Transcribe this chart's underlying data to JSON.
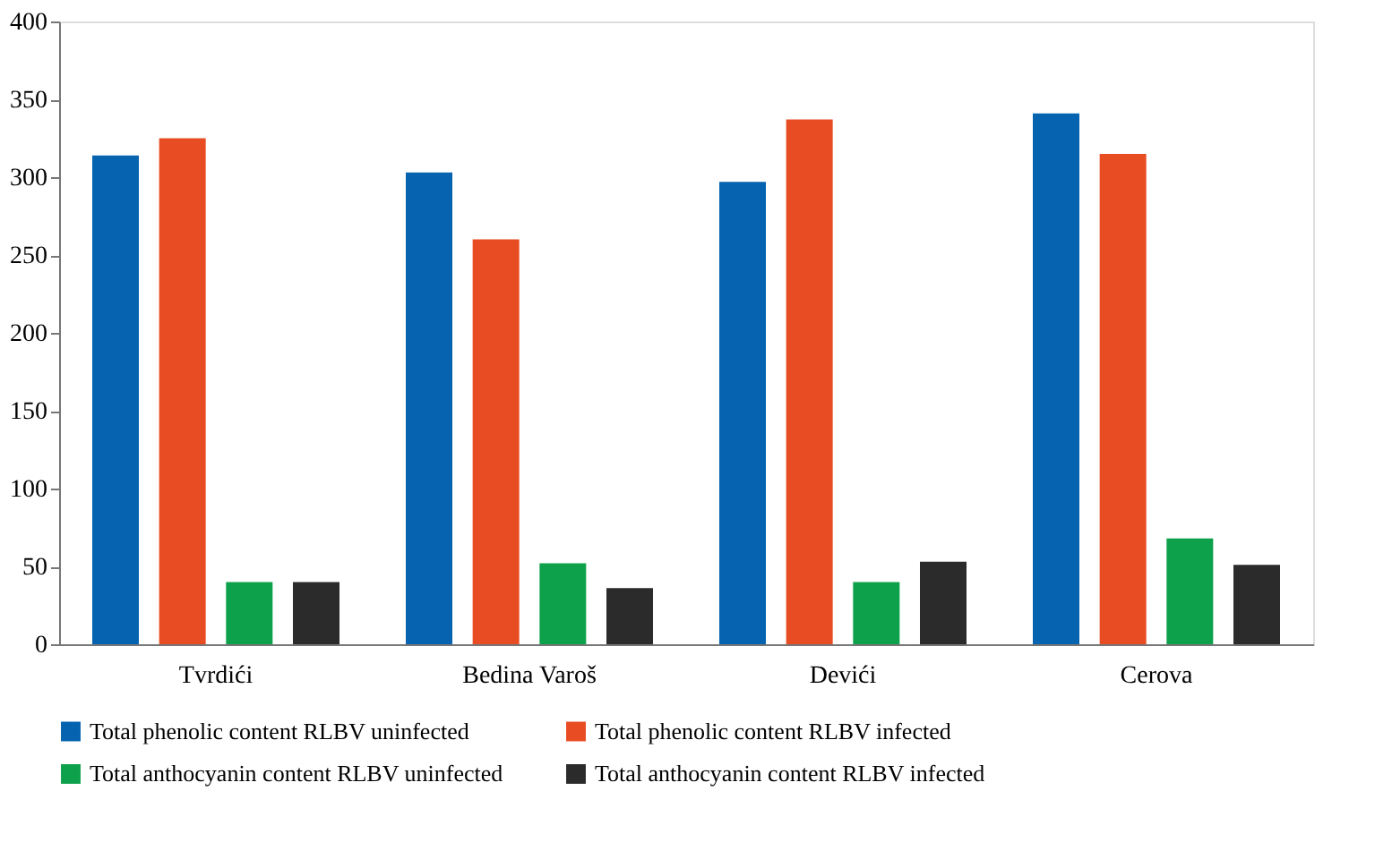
{
  "chart_data": {
    "type": "bar",
    "categories": [
      "Tvrdići",
      "Bedina Varoš",
      "Devići",
      "Cerova"
    ],
    "series": [
      {
        "name": "Total phenolic content RLBV uninfected",
        "color": "#0563b0",
        "values": [
          314,
          303,
          297,
          341
        ]
      },
      {
        "name": "Total phenolic content RLBV infected",
        "color": "#e84c22",
        "values": [
          325,
          260,
          337,
          315
        ]
      },
      {
        "name": "Total anthocyanin content  RLBV uninfected",
        "color": "#0ea14b",
        "values": [
          40,
          52,
          40,
          68
        ]
      },
      {
        "name": "Total anthocyanin content  RLBV infected",
        "color": "#2b2b2b",
        "values": [
          40,
          36,
          53,
          51
        ]
      }
    ],
    "ylim": [
      0,
      400
    ],
    "yticks": [
      0,
      50,
      100,
      150,
      200,
      250,
      300,
      350,
      400
    ],
    "grid": false,
    "legend": "bottom"
  }
}
